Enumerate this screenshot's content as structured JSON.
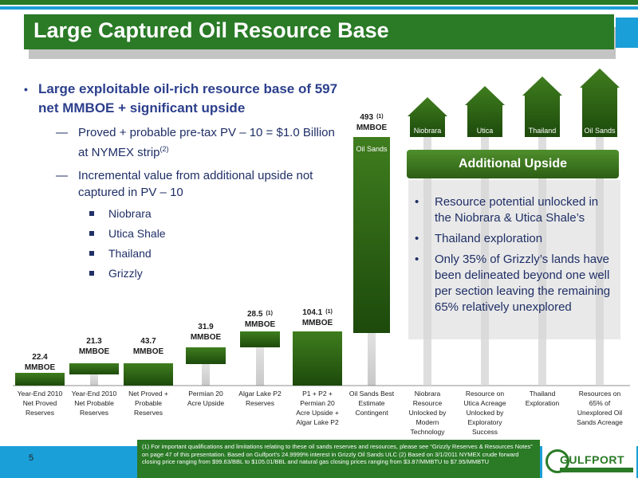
{
  "page": {
    "title": "Large Captured Oil Resource Base",
    "page_number": "5"
  },
  "bullets": {
    "main": "Large exploitable oil-rich resource base of 597 net MMBOE + significant upside",
    "sub1_text": "Proved + probable pre-tax PV – 10 = $1.0 Billion at NYMEX strip",
    "sub1_sup": "(2)",
    "sub2": "Incremental value from additional upside not captured in PV – 10",
    "items": [
      "Niobrara",
      "Utica Shale",
      "Thailand",
      "Grizzly"
    ]
  },
  "upside": {
    "header": "Additional Upside",
    "items": [
      "Resource potential unlocked in the Niobrara & Utica Shale’s",
      "Thailand exploration",
      "Only 35% of Grizzly’s lands have been delineated beyond one well per section leaving the remaining 65% relatively unexplored"
    ]
  },
  "footnote": "(1) For important qualifications and limitations relating to these oil sands reserves and resources, please see “Grizzly Reserves & Resources Notes” on page 47 of this presentation. Based on Gulfport’s 24.9999% interest in Grizzly Oil Sands ULC (2) Based on 3/1/2011 NYMEX crude forward closing price ranging from $99.63/BBL to $105.01/BBL and natural gas closing prices ranging from $3.87/MMBTU to $7.95/MMBTU",
  "logo": {
    "text": "GULFPORT"
  },
  "colors": {
    "green": "#2a7a26",
    "bar_dark": "#1d4a0c",
    "bar_light": "#3f7d1e",
    "blue": "#1b9fd8",
    "bullet_text": "#1f2f66"
  },
  "chart_data": {
    "type": "bar",
    "subtype": "waterfall",
    "categories": [
      "Year-End 2010 Net Proved Reserves",
      "Year-End 2010 Net Probable Reserves",
      "Net Proved + Probable Reserves",
      "Permian 20 Acre Upside",
      "Algar Lake P2 Reserves",
      "P1 + P2 + Permian 20 Acre Upside + Algar Lake P2",
      "Oil Sands Best Estimate Contingent",
      "Niobrara Resource Unlocked by Modern Technology",
      "Resource on Utica Acreage Unlocked by Exploratory Success",
      "Thailand Exploration",
      "Resources on 65% of Unexplored Oil Sands Acreage"
    ],
    "values": [
      22.4,
      21.3,
      43.7,
      31.9,
      28.5,
      104.1,
      493,
      null,
      null,
      null,
      null
    ],
    "value_labels": [
      "22.4",
      "21.3",
      "43.7",
      "31.9",
      "28.5",
      "104.1",
      "493",
      "",
      "",
      "",
      ""
    ],
    "value_units": [
      "MMBOE",
      "MMBOE",
      "MMBOE",
      "MMBOE",
      "MMBOE",
      "MMBOE",
      "MMBOE",
      "",
      "",
      "",
      ""
    ],
    "value_notes": [
      "",
      "",
      "",
      "",
      "(1)",
      "(1)",
      "(1)",
      "",
      "",
      "",
      ""
    ],
    "bar_inner_labels": [
      "",
      "",
      "",
      "",
      "",
      "",
      "Oil Sands",
      "",
      "",
      "",
      ""
    ],
    "upside_arrows": [
      "Niobrara",
      "Utica",
      "Thailand",
      "Oil Sands"
    ]
  }
}
